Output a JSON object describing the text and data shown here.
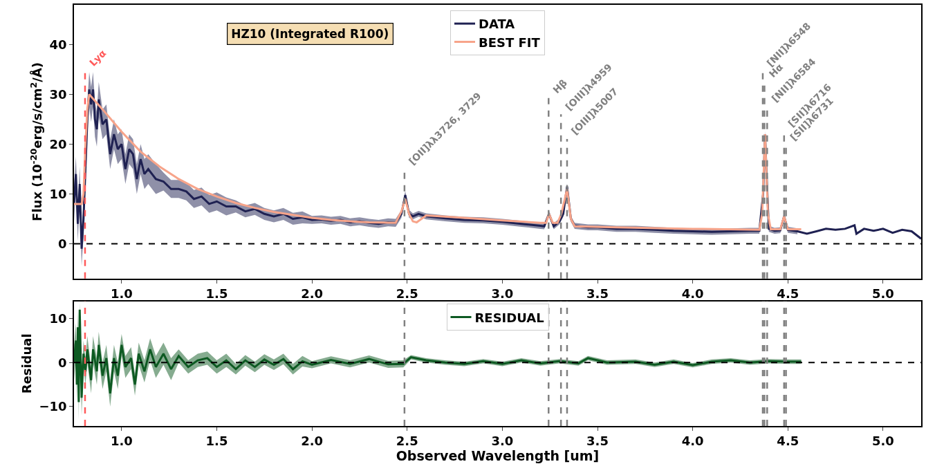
{
  "chart_data": [
    {
      "type": "line",
      "ylabel": "Flux (10$^{-20}$erg/s/cm$^{2}$/Å)",
      "annotations": [
        "HZ10 (Integrated R100)"
      ],
      "xlim": [
        0.75,
        5.2
      ],
      "ylim": [
        -7,
        48
      ],
      "xticks": [
        {
          "value": 1,
          "label": "1.0"
        },
        {
          "value": 1.5,
          "label": "1.5"
        },
        {
          "value": 2,
          "label": "2.0"
        },
        {
          "value": 2.5,
          "label": "2.5"
        },
        {
          "value": 3,
          "label": "3.0"
        },
        {
          "value": 3.5,
          "label": "3.5"
        },
        {
          "value": 4,
          "label": "4.0"
        },
        {
          "value": 4.5,
          "label": "4.5"
        },
        {
          "value": 5,
          "label": "5.0"
        }
      ],
      "yticks": [
        0,
        10,
        20,
        30,
        40
      ],
      "legend": "top",
      "series": [
        {
          "name": "DATA",
          "color": "#1f2152",
          "x": [
            0.75,
            0.76,
            0.77,
            0.78,
            0.79,
            0.8,
            0.81,
            0.82,
            0.83,
            0.84,
            0.85,
            0.86,
            0.87,
            0.88,
            0.9,
            0.92,
            0.94,
            0.96,
            0.98,
            1.0,
            1.02,
            1.04,
            1.06,
            1.08,
            1.1,
            1.12,
            1.14,
            1.18,
            1.22,
            1.26,
            1.3,
            1.34,
            1.38,
            1.42,
            1.46,
            1.5,
            1.55,
            1.6,
            1.65,
            1.7,
            1.75,
            1.8,
            1.85,
            1.9,
            1.95,
            2.0,
            2.05,
            2.1,
            2.15,
            2.2,
            2.25,
            2.3,
            2.35,
            2.4,
            2.44,
            2.47,
            2.49,
            2.51,
            2.53,
            2.56,
            2.6,
            2.7,
            2.8,
            2.9,
            3.0,
            3.1,
            3.2,
            3.22,
            3.245,
            3.27,
            3.3,
            3.32,
            3.34,
            3.36,
            3.38,
            3.45,
            3.5,
            3.6,
            3.7,
            3.8,
            3.9,
            4.0,
            4.1,
            4.2,
            4.3,
            4.35,
            4.37,
            4.38,
            4.39,
            4.4,
            4.43,
            4.46,
            4.48,
            4.5,
            4.55,
            4.6,
            4.65,
            4.7,
            4.75,
            4.8,
            4.85,
            4.86,
            4.9,
            4.95,
            5.0,
            5.05,
            5.1,
            5.15,
            5.2
          ],
          "values": [
            8,
            14,
            4,
            12,
            -1,
            5,
            15,
            25,
            31,
            28,
            31,
            25,
            23,
            29,
            24,
            25,
            18,
            22,
            19,
            20,
            15,
            19,
            18,
            13,
            17,
            14,
            15,
            13,
            12.5,
            11,
            11,
            10.5,
            9,
            9.5,
            8,
            8.5,
            7.5,
            7.5,
            6.5,
            7,
            6,
            5.5,
            6,
            5,
            5.3,
            4.8,
            4.9,
            4.6,
            4.8,
            4.3,
            4.5,
            4.2,
            4.0,
            4.3,
            4.2,
            6,
            9.8,
            6,
            5.5,
            6.0,
            5.5,
            5.1,
            4.8,
            4.7,
            4.4,
            4.0,
            3.6,
            3.5,
            6.0,
            3.5,
            4.5,
            6,
            11.5,
            5,
            3.6,
            3.3,
            3.3,
            3.0,
            3.0,
            2.8,
            2.6,
            2.5,
            2.4,
            2.5,
            2.6,
            2.6,
            10,
            22,
            12,
            3,
            2.6,
            2.7,
            5.5,
            2.8,
            2.5,
            2.0,
            2.5,
            3.0,
            2.8,
            3.0,
            3.7,
            2.0,
            3.0,
            2.6,
            3.0,
            2.2,
            2.8,
            2.5,
            1.0
          ],
          "lower": [
            4.5,
            10.5,
            0.5,
            8.5,
            -4.5,
            1.5,
            11.5,
            21.5,
            27.5,
            24.5,
            27.5,
            21.5,
            19.5,
            25.5,
            21,
            22,
            15,
            19,
            16,
            17,
            12,
            16,
            15,
            10,
            14,
            11,
            12,
            10,
            10.7,
            9.2,
            9.2,
            8.7,
            7.2,
            7.7,
            6.2,
            6.7,
            5.7,
            6.3,
            5.3,
            5.8,
            4.8,
            4.3,
            4.8,
            3.8,
            4.1,
            4.0,
            4.1,
            3.8,
            4.0,
            3.5,
            3.7,
            3.4,
            3.2,
            3.5,
            3.4,
            5.2,
            9.0,
            5.2,
            4.9,
            5.4,
            4.9,
            4.5,
            4.2,
            4.1,
            3.8,
            3.4,
            3.0,
            2.9,
            5.4,
            2.9,
            3.9,
            5.4,
            10.9,
            4.4,
            3.0,
            2.7,
            2.7,
            2.4,
            2.4,
            2.2,
            2.0,
            1.9,
            1.8,
            1.9,
            2.0,
            2.0,
            9.4,
            21.4,
            11.4,
            2.4,
            2.0,
            2.1,
            4.9,
            2.2,
            1.9,
            null,
            null,
            null,
            null,
            null,
            null,
            null,
            null,
            null,
            null,
            null,
            null,
            null,
            null
          ],
          "upper": [
            11.5,
            17.5,
            7.5,
            15.5,
            2.5,
            8.5,
            18.5,
            28.5,
            34.5,
            31.5,
            34.5,
            28.5,
            26.5,
            32.5,
            27,
            28,
            21,
            25,
            22,
            23,
            18,
            22,
            21,
            16,
            20,
            17,
            18,
            16,
            14.3,
            12.8,
            12.8,
            12.3,
            10.8,
            11.3,
            9.8,
            10.3,
            9.3,
            8.7,
            7.7,
            8.2,
            7.2,
            6.7,
            7.2,
            6.2,
            6.5,
            5.6,
            5.7,
            5.4,
            5.6,
            5.1,
            5.3,
            5.0,
            4.8,
            5.1,
            5.0,
            6.8,
            10.6,
            6.8,
            6.1,
            6.6,
            6.1,
            5.7,
            5.4,
            5.3,
            5.0,
            4.6,
            4.2,
            4.1,
            6.6,
            4.1,
            5.1,
            6.6,
            12.1,
            5.6,
            4.2,
            3.9,
            3.9,
            3.6,
            3.6,
            3.4,
            3.2,
            3.1,
            3.0,
            3.1,
            3.2,
            3.2,
            10.6,
            22.6,
            12.6,
            3.6,
            3.2,
            3.3,
            6.1,
            3.4,
            3.1,
            null,
            null,
            null,
            null,
            null,
            null,
            null,
            null,
            null,
            null,
            null,
            null,
            null,
            null
          ]
        },
        {
          "name": "BEST FIT",
          "color": "#f7a48a",
          "x": [
            0.75,
            0.79,
            0.8,
            0.81,
            0.82,
            0.83,
            0.9,
            1.0,
            1.1,
            1.2,
            1.3,
            1.4,
            1.5,
            1.6,
            1.7,
            1.8,
            1.9,
            2.0,
            2.1,
            2.2,
            2.3,
            2.44,
            2.47,
            2.49,
            2.51,
            2.53,
            2.55,
            2.6,
            2.8,
            3.0,
            3.2,
            3.23,
            3.245,
            3.265,
            3.29,
            3.31,
            3.34,
            3.36,
            3.38,
            3.6,
            4.0,
            4.35,
            4.365,
            4.38,
            4.395,
            4.41,
            4.46,
            4.48,
            4.5,
            4.57
          ],
          "values": [
            8,
            8,
            10,
            20,
            27,
            30,
            27,
            22.5,
            18.5,
            15.5,
            13,
            11,
            9.5,
            8.2,
            7.2,
            6.4,
            5.8,
            5.2,
            4.8,
            4.5,
            4.3,
            4.2,
            6.5,
            9,
            6,
            4.5,
            4.3,
            5.7,
            5.2,
            4.7,
            4.2,
            4.2,
            6,
            4.2,
            4.2,
            6,
            11,
            5,
            3.5,
            3.3,
            3.0,
            2.8,
            6,
            22,
            6,
            2.9,
            2.9,
            5.5,
            2.9,
            2.9
          ]
        }
      ],
      "ref_lines": [
        {
          "axis": "x",
          "value": 0.808,
          "label": "Lyα",
          "color": "#ff5a5a",
          "line_style": "dashed"
        },
        {
          "axis": "x",
          "value": 2.486,
          "label": "[OII]λλ3726, 3729",
          "color": "#808080",
          "line_style": "dashed"
        },
        {
          "axis": "x",
          "value": 3.243,
          "label": "Hβ",
          "color": "#808080",
          "line_style": "dashed"
        },
        {
          "axis": "x",
          "value": 3.308,
          "label": "[OIII]λ4959",
          "color": "#808080",
          "line_style": "dashed"
        },
        {
          "axis": "x",
          "value": 3.34,
          "label": "[OIII]λ5007",
          "color": "#808080",
          "line_style": "dashed"
        },
        {
          "axis": "x",
          "value": 4.368,
          "label": "[NII]λ6548",
          "color": "#808080",
          "line_style": "dashed"
        },
        {
          "axis": "x",
          "value": 4.377,
          "label": "Hα",
          "color": "#808080",
          "line_style": "dashed"
        },
        {
          "axis": "x",
          "value": 4.391,
          "label": "[NII]λ6584",
          "color": "#808080",
          "line_style": "dashed"
        },
        {
          "axis": "x",
          "value": 4.48,
          "label": "[SII]λ6716",
          "color": "#808080",
          "line_style": "dashed"
        },
        {
          "axis": "x",
          "value": 4.49,
          "label": "[SII]λ6731",
          "color": "#808080",
          "line_style": "dashed"
        },
        {
          "axis": "y",
          "value": 0,
          "color": "#000000",
          "line_style": "dashed"
        }
      ]
    },
    {
      "type": "line",
      "xlabel": "Observed Wavelength [um]",
      "ylabel": "Residual",
      "xlim": [
        0.75,
        5.2
      ],
      "ylim": [
        -14.4,
        13.9
      ],
      "xticks": [
        {
          "value": 1,
          "label": "1.0"
        },
        {
          "value": 1.5,
          "label": "1.5"
        },
        {
          "value": 2,
          "label": "2.0"
        },
        {
          "value": 2.5,
          "label": "2.5"
        },
        {
          "value": 3,
          "label": "3.0"
        },
        {
          "value": 3.5,
          "label": "3.5"
        },
        {
          "value": 4,
          "label": "4.0"
        },
        {
          "value": 4.5,
          "label": "4.5"
        },
        {
          "value": 5,
          "label": "5.0"
        }
      ],
      "yticks": [
        {
          "value": -10,
          "label": "−10"
        },
        0,
        10
      ],
      "legend": "top",
      "series": [
        {
          "name": "RESIDUAL",
          "color": "#0d5a22",
          "x": [
            0.75,
            0.76,
            0.765,
            0.77,
            0.775,
            0.78,
            0.79,
            0.8,
            0.81,
            0.82,
            0.84,
            0.85,
            0.87,
            0.88,
            0.9,
            0.92,
            0.94,
            0.96,
            0.98,
            1.0,
            1.02,
            1.05,
            1.07,
            1.09,
            1.12,
            1.15,
            1.18,
            1.22,
            1.26,
            1.3,
            1.35,
            1.4,
            1.45,
            1.5,
            1.55,
            1.6,
            1.65,
            1.7,
            1.75,
            1.8,
            1.85,
            1.9,
            1.95,
            2.0,
            2.1,
            2.2,
            2.3,
            2.4,
            2.48,
            2.52,
            2.6,
            2.7,
            2.8,
            2.9,
            3.0,
            3.1,
            3.2,
            3.3,
            3.4,
            3.45,
            3.55,
            3.7,
            3.8,
            3.9,
            4.0,
            4.1,
            4.2,
            4.3,
            4.4,
            4.5,
            4.57
          ],
          "values": [
            0,
            5,
            -5,
            8,
            -9,
            12,
            -8,
            2,
            -2,
            3,
            -4,
            3,
            -2,
            4,
            -3,
            1,
            -7,
            1,
            -3,
            4,
            -1,
            1,
            -5,
            2,
            -2,
            3,
            -1,
            2,
            -1.5,
            1.5,
            -1,
            0.5,
            1,
            -1,
            0.5,
            -1.5,
            0.5,
            -1,
            0.7,
            -0.5,
            0.8,
            -1.5,
            0.3,
            -0.5,
            0.6,
            -0.3,
            0.8,
            -0.4,
            -0.3,
            1.2,
            0.5,
            0,
            -0.3,
            0.3,
            -0.3,
            0.5,
            -0.2,
            0.3,
            -0.2,
            1,
            0,
            0.2,
            -0.5,
            0.2,
            -0.6,
            0.2,
            0.5,
            0,
            0.3,
            0.2,
            0.2
          ],
          "lower": [
            -4,
            1,
            -9,
            4,
            -13,
            8,
            -12,
            -1,
            -5,
            0,
            -7,
            0,
            -5,
            1,
            -6,
            -2,
            -10,
            -2,
            -6,
            1.5,
            -3.5,
            -1.5,
            -7.5,
            -0.5,
            -4.5,
            0.5,
            -3.5,
            -0.5,
            -4,
            0,
            -2.5,
            -1,
            -0.5,
            -2.5,
            -1,
            -2.7,
            -0.7,
            -2.2,
            -0.5,
            -1.7,
            -0.4,
            -2.7,
            -0.9,
            -1.3,
            -0.2,
            -1.1,
            0,
            -1.2,
            -1.1,
            0.7,
            0,
            -0.5,
            -0.8,
            -0.2,
            -0.8,
            0,
            -0.7,
            -0.2,
            -0.7,
            0.5,
            -0.5,
            -0.3,
            -1,
            -0.3,
            -1.1,
            -0.3,
            0,
            -0.5,
            -0.2,
            -0.3,
            -0.3
          ],
          "upper": [
            4,
            9,
            -1,
            12,
            -5,
            13.5,
            -4,
            5,
            1,
            6,
            -1,
            6,
            1,
            7,
            0,
            4,
            -4,
            4,
            0,
            6.5,
            1.5,
            3.5,
            -2.5,
            4.5,
            0.5,
            5.5,
            1.5,
            4.5,
            1,
            3,
            0.5,
            2,
            2.5,
            0.5,
            2,
            -0.3,
            1.7,
            0.2,
            1.9,
            0.7,
            2.0,
            -0.3,
            1.5,
            0.3,
            1.4,
            0.5,
            1.6,
            0.4,
            0.5,
            1.7,
            1,
            0.5,
            0.2,
            0.8,
            0.2,
            1,
            0.3,
            0.8,
            0.3,
            1.5,
            0.5,
            0.7,
            0,
            0.7,
            -0.1,
            0.7,
            1,
            0.5,
            0.8,
            0.7,
            0.7
          ]
        }
      ],
      "ref_lines": [
        {
          "axis": "x",
          "value": 0.808,
          "color": "#ff5a5a",
          "line_style": "dashed"
        },
        {
          "axis": "x",
          "value": 2.486,
          "color": "#808080",
          "line_style": "dashed"
        },
        {
          "axis": "x",
          "value": 3.243,
          "color": "#808080",
          "line_style": "dashed"
        },
        {
          "axis": "x",
          "value": 3.308,
          "color": "#808080",
          "line_style": "dashed"
        },
        {
          "axis": "x",
          "value": 3.34,
          "color": "#808080",
          "line_style": "dashed"
        },
        {
          "axis": "x",
          "value": 4.368,
          "color": "#808080",
          "line_style": "dashed"
        },
        {
          "axis": "x",
          "value": 4.377,
          "color": "#808080",
          "line_style": "dashed"
        },
        {
          "axis": "x",
          "value": 4.391,
          "color": "#808080",
          "line_style": "dashed"
        },
        {
          "axis": "x",
          "value": 4.48,
          "color": "#808080",
          "line_style": "dashed"
        },
        {
          "axis": "x",
          "value": 4.49,
          "color": "#808080",
          "line_style": "dashed"
        },
        {
          "axis": "y",
          "value": 0,
          "color": "#000000",
          "line_style": "dashed"
        }
      ]
    }
  ]
}
